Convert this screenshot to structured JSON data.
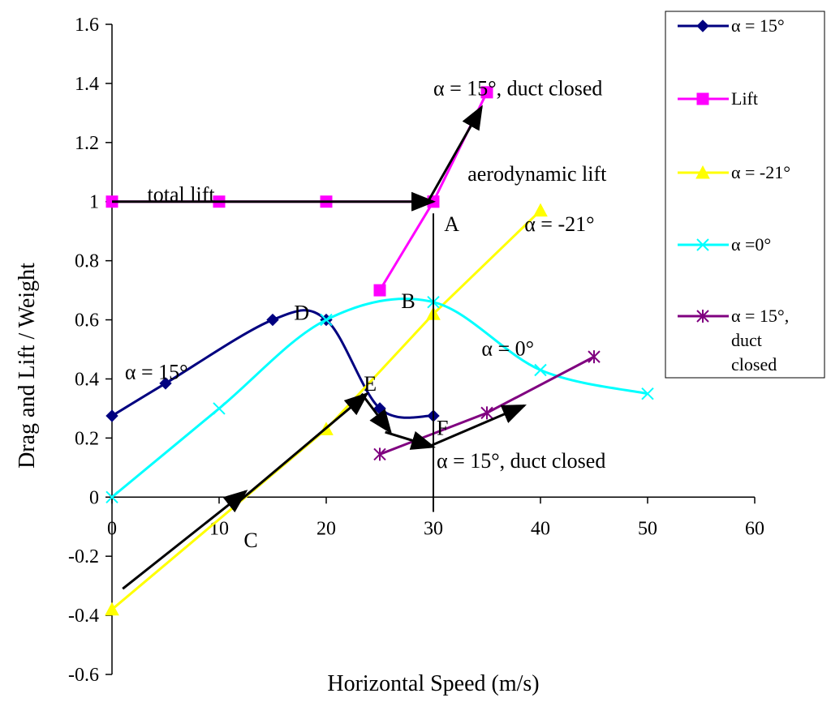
{
  "chart_data": {
    "type": "line",
    "title": "",
    "xlabel": "Horizontal Speed (m/s)",
    "ylabel": "Drag and Lift / Weight",
    "xlim": [
      0,
      60
    ],
    "ylim": [
      -0.6,
      1.6
    ],
    "xticks": [
      0,
      10,
      20,
      30,
      40,
      50,
      60
    ],
    "xtick_labels": [
      "0",
      "10",
      "20",
      "30",
      "40",
      "50",
      "60"
    ],
    "yticks": [
      -0.6,
      -0.4,
      -0.2,
      0,
      0.2,
      0.4,
      0.6,
      0.8,
      1,
      1.2,
      1.4,
      1.6
    ],
    "ytick_labels": [
      "-0.6",
      "-0.4",
      "-0.2",
      "0",
      "0.2",
      "0.4",
      "0.6",
      "0.8",
      "1",
      "1.2",
      "1.4",
      "1.6"
    ],
    "grid": false,
    "legend_position": "right",
    "series": [
      {
        "key": "alpha15",
        "name": "α = 15°",
        "legend_lines": [
          "α = 15°"
        ],
        "color": "#000080",
        "marker": "diamond",
        "smooth": true,
        "x": [
          0,
          5,
          15,
          20,
          25,
          30
        ],
        "y": [
          0.275,
          0.385,
          0.6,
          0.6,
          0.3,
          0.275
        ]
      },
      {
        "key": "lift",
        "name": "Lift",
        "legend_lines": [
          "Lift"
        ],
        "color": "#ff00ff",
        "marker": "square",
        "smooth": false,
        "x": [
          0,
          10,
          20,
          30
        ],
        "y": [
          1,
          1,
          1,
          1
        ],
        "extra_segment": {
          "x": [
            25,
            30,
            35
          ],
          "y": [
            0.7,
            1,
            1.37
          ]
        }
      },
      {
        "key": "alpha_m21",
        "name": "α = -21°",
        "legend_lines": [
          "α = -21°"
        ],
        "color": "#ffff00",
        "marker": "triangle",
        "smooth": false,
        "x": [
          0,
          20,
          30,
          40
        ],
        "y": [
          -0.38,
          0.23,
          0.62,
          0.97
        ]
      },
      {
        "key": "alpha0",
        "name": "α =0°",
        "legend_lines": [
          "α =0°"
        ],
        "color": "#00ffff",
        "marker": "x",
        "smooth": true,
        "x": [
          0,
          10,
          20,
          30,
          40,
          50
        ],
        "y": [
          0,
          0.3,
          0.6,
          0.66,
          0.43,
          0.35
        ]
      },
      {
        "key": "alpha15_closed",
        "name": "α = 15°, duct closed",
        "legend_lines": [
          "α = 15°,",
          "duct",
          "closed"
        ],
        "color": "#800080",
        "marker": "asterisk",
        "smooth": false,
        "x": [
          25,
          35,
          45
        ],
        "y": [
          0.145,
          0.285,
          0.475
        ]
      }
    ],
    "vertical_line": {
      "x": 30,
      "y_from": 0.96,
      "y_to": -0.05,
      "color": "#000000"
    },
    "arrows": [
      {
        "from": [
          0,
          1
        ],
        "to": [
          30,
          1
        ]
      },
      {
        "from": [
          29.5,
          1
        ],
        "to": [
          34.5,
          1.32
        ]
      },
      {
        "from": [
          1,
          -0.31
        ],
        "to": [
          12.5,
          0.02
        ]
      },
      {
        "from": [
          12,
          -0.01
        ],
        "to": [
          23.8,
          0.35
        ]
      },
      {
        "from": [
          23.3,
          0.35
        ],
        "to": [
          26,
          0.22
        ]
      },
      {
        "from": [
          25.5,
          0.22
        ],
        "to": [
          30,
          0.17
        ]
      },
      {
        "from": [
          29.5,
          0.17
        ],
        "to": [
          38.5,
          0.31
        ]
      }
    ],
    "annotations": [
      {
        "text": "total lift",
        "x": 3.3,
        "y": 1.0
      },
      {
        "text": "α = 15°, duct closed",
        "x": 30,
        "y": 1.36
      },
      {
        "text": "aerodynamic lift",
        "x": 33.2,
        "y": 1.07
      },
      {
        "text": "A",
        "x": 31,
        "y": 0.9
      },
      {
        "text": "α = -21°",
        "x": 38.5,
        "y": 0.9
      },
      {
        "text": "B",
        "x": 27,
        "y": 0.64
      },
      {
        "text": "D",
        "x": 17,
        "y": 0.6
      },
      {
        "text": "α = 0°",
        "x": 34.5,
        "y": 0.48
      },
      {
        "text": "α = 15°",
        "x": 1.2,
        "y": 0.4
      },
      {
        "text": "E",
        "x": 23.5,
        "y": 0.36
      },
      {
        "text": "F",
        "x": 30.3,
        "y": 0.21
      },
      {
        "text": "α = 15°, duct closed",
        "x": 30.3,
        "y": 0.1
      },
      {
        "text": "C",
        "x": 12.3,
        "y": -0.17
      }
    ]
  }
}
